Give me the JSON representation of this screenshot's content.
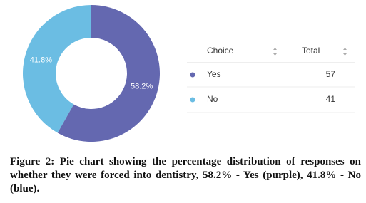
{
  "chart_data": {
    "type": "donut",
    "categories": [
      "Yes",
      "No"
    ],
    "values": [
      58.2,
      41.8
    ],
    "value_labels": [
      "58.2%",
      "41.8%"
    ],
    "colors": [
      "#6468b0",
      "#6bbde3"
    ]
  },
  "table": {
    "headers": [
      "Choice",
      "Total"
    ],
    "rows": [
      [
        "Yes",
        57
      ],
      [
        "No",
        41
      ]
    ]
  },
  "caption": "Figure 2: Pie chart showing the percentage distribution of responses on whether they were forced into dentistry, 58.2% - Yes (purple), 41.8% - No (blue)."
}
